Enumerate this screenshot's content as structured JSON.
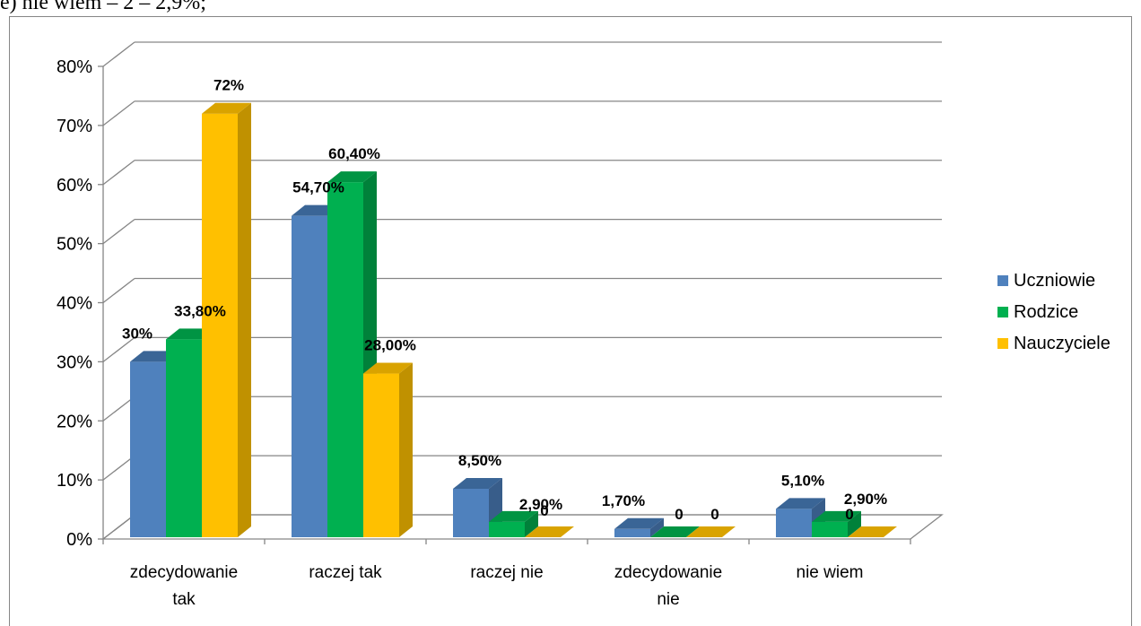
{
  "header_text": "e) nie wiem – 2 – 2,9%;",
  "chart_data": {
    "type": "bar",
    "categories": [
      [
        "zdecydowanie",
        "tak"
      ],
      [
        "raczej tak"
      ],
      [
        "raczej nie"
      ],
      [
        "zdecydowanie",
        "nie"
      ],
      [
        "nie wiem"
      ]
    ],
    "ylim": [
      0,
      80
    ],
    "y_ticks": [
      "0%",
      "10%",
      "20%",
      "30%",
      "40%",
      "50%",
      "60%",
      "70%",
      "80%"
    ],
    "grid": true,
    "legend_position": "right",
    "series": [
      {
        "name": "Uczniowie",
        "color": "#4f81bd",
        "side_color": "#385d8a",
        "top_color": "#3a6596",
        "values": [
          30,
          54.7,
          8.5,
          1.7,
          5.1
        ],
        "labels": [
          "30%",
          "54,70%",
          "8,50%",
          "1,70%",
          "5,10%"
        ]
      },
      {
        "name": "Rodzice",
        "color": "#00b050",
        "side_color": "#00813a",
        "top_color": "#009443",
        "values": [
          33.8,
          60.4,
          2.9,
          0,
          2.9
        ],
        "labels": [
          "33,80%",
          "60,40%",
          "2,90%",
          "0",
          "2,90%"
        ]
      },
      {
        "name": "Nauczyciele",
        "color": "#ffc000",
        "side_color": "#c09100",
        "top_color": "#d9a300",
        "values": [
          72,
          28,
          0,
          0,
          0
        ],
        "labels": [
          "72%",
          "28,00%",
          "0",
          "0",
          ""
        ]
      }
    ]
  }
}
